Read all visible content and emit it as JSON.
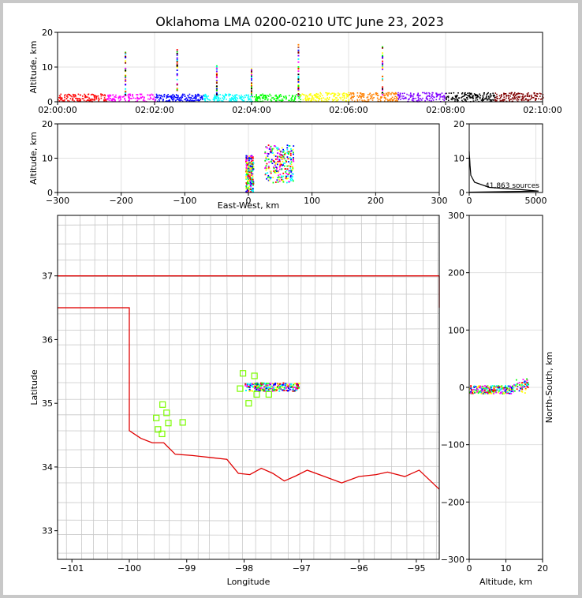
{
  "chart_data": [
    {
      "type": "scatter",
      "panel": "altitude-time",
      "title": "Oklahoma LMA 0200-0210 UTC June 23, 2023",
      "ylabel": "Altitude, km",
      "xlabel": "",
      "x_ticks": [
        "02:00:00",
        "02:02:00",
        "02:04:00",
        "02:06:00",
        "02:08:00",
        "02:10:00"
      ],
      "xlim": [
        0,
        600
      ],
      "ylim": [
        0,
        20
      ],
      "y_ticks": [
        0,
        10,
        20
      ],
      "grid": true,
      "columns": [
        {
          "t": 84,
          "top": 14.5
        },
        {
          "t": 148,
          "top": 15.5
        },
        {
          "t": 197,
          "top": 11
        },
        {
          "t": 240,
          "top": 10
        },
        {
          "t": 298,
          "top": 17
        },
        {
          "t": 402,
          "top": 16
        }
      ]
    },
    {
      "type": "scatter",
      "panel": "altitude-east-west",
      "xlabel": "East-West, km",
      "ylabel": "Altitude, km",
      "xlim": [
        -300,
        300
      ],
      "ylim": [
        0,
        20
      ],
      "x_ticks": [
        -300,
        -200,
        -100,
        0,
        100,
        200,
        300
      ],
      "y_ticks": [
        0,
        10,
        20
      ],
      "grid": true
    },
    {
      "type": "line",
      "panel": "altitude-histogram",
      "xlim": [
        0,
        5500
      ],
      "ylim": [
        0,
        20
      ],
      "x_ticks": [
        0,
        5000
      ],
      "y_ticks": [
        0,
        10,
        20
      ],
      "annotation": "41,863 sources",
      "grid": true
    },
    {
      "type": "scatter",
      "panel": "plan-view-map",
      "xlabel": "Longitude",
      "ylabel": "Latitude",
      "xlim": [
        -101.25,
        -94.6
      ],
      "ylim": [
        32.55,
        37.95
      ],
      "x_ticks": [
        -101,
        -100,
        -99,
        -98,
        -97,
        -96,
        -95
      ],
      "y_ticks": [
        33,
        34,
        35,
        36,
        37
      ],
      "stations": [
        {
          "lon": -98.02,
          "lat": 35.47
        },
        {
          "lon": -97.82,
          "lat": 35.43
        },
        {
          "lon": -98.07,
          "lat": 35.23
        },
        {
          "lon": -97.78,
          "lat": 35.14
        },
        {
          "lon": -97.57,
          "lat": 35.14
        },
        {
          "lon": -97.92,
          "lat": 35.0
        },
        {
          "lon": -99.42,
          "lat": 34.98
        },
        {
          "lon": -99.35,
          "lat": 34.85
        },
        {
          "lon": -99.53,
          "lat": 34.77
        },
        {
          "lon": -99.32,
          "lat": 34.69
        },
        {
          "lon": -99.07,
          "lat": 34.7
        },
        {
          "lon": -99.5,
          "lat": 34.59
        },
        {
          "lon": -99.43,
          "lat": 34.52
        }
      ]
    },
    {
      "type": "scatter",
      "panel": "north-south-altitude",
      "xlabel": "Altitude, km",
      "ylabel": "North-South, km",
      "xlim": [
        0,
        20
      ],
      "ylim": [
        -300,
        300
      ],
      "x_ticks": [
        0,
        10,
        20
      ],
      "y_ticks": [
        -300,
        -200,
        -100,
        0,
        100,
        200,
        300
      ],
      "grid": true
    }
  ],
  "colors": {
    "state_border": "#e00000",
    "county_lines": "#c8c8c8",
    "station": "#7cfc00",
    "histogram_line": "#000000"
  }
}
